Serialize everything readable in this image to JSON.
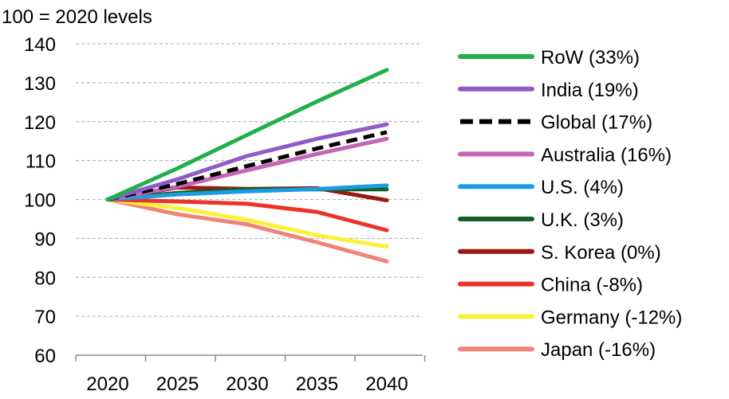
{
  "chart_data": {
    "type": "line",
    "title": "100 = 2020 levels",
    "xlabel": "",
    "ylabel": "",
    "x": [
      2020,
      2025,
      2030,
      2035,
      2040
    ],
    "ylim": [
      60,
      140
    ],
    "yticks": [
      60,
      70,
      80,
      90,
      100,
      110,
      120,
      130,
      140
    ],
    "grid": true,
    "legend_position": "right",
    "series": [
      {
        "name": "RoW (33%)",
        "color": "#1fb04a",
        "dashed": false,
        "values": [
          100,
          108,
          116.6,
          125.2,
          133.3
        ]
      },
      {
        "name": "India (19%)",
        "color": "#8e5cc8",
        "dashed": false,
        "values": [
          100,
          105.2,
          111.2,
          115.6,
          119.3
        ]
      },
      {
        "name": "Global (17%)",
        "color": "#000000",
        "dashed": true,
        "values": [
          100,
          104,
          108.6,
          113.1,
          117.3
        ]
      },
      {
        "name": "Australia (16%)",
        "color": "#c565b6",
        "dashed": false,
        "values": [
          100,
          103.3,
          107.5,
          111.7,
          115.6
        ]
      },
      {
        "name": "U.S. (4%)",
        "color": "#1d9de1",
        "dashed": false,
        "values": [
          100,
          101.3,
          102.1,
          102.7,
          103.6
        ]
      },
      {
        "name": "U.K. (3%)",
        "color": "#16602e",
        "dashed": false,
        "values": [
          100,
          101.7,
          102.6,
          102.6,
          102.6
        ]
      },
      {
        "name": "S. Korea (0%)",
        "color": "#991812",
        "dashed": false,
        "values": [
          100,
          103.1,
          102.7,
          102.9,
          99.8
        ]
      },
      {
        "name": "China (-8%)",
        "color": "#ef3228",
        "dashed": false,
        "values": [
          100,
          99.5,
          98.9,
          96.8,
          92.1
        ]
      },
      {
        "name": "Germany (-12%)",
        "color": "#fdf03a",
        "dashed": false,
        "values": [
          100,
          97.8,
          94.8,
          90.8,
          87.9
        ]
      },
      {
        "name": "Japan (-16%)",
        "color": "#f18477",
        "dashed": false,
        "values": [
          100,
          96.2,
          93.6,
          89,
          84.1
        ]
      }
    ]
  }
}
